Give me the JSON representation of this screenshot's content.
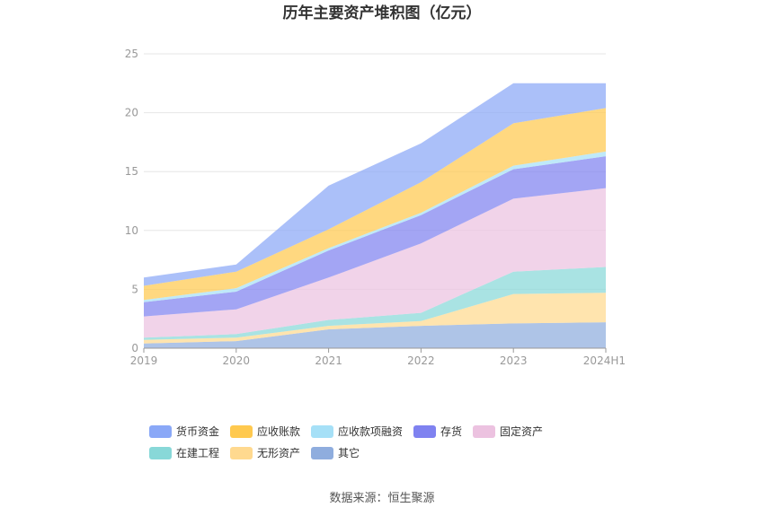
{
  "chart_data": {
    "type": "area",
    "stacked": true,
    "title": "历年主要资产堆积图（亿元）",
    "x": [
      "2019",
      "2020",
      "2021",
      "2022",
      "2023",
      "2024H1"
    ],
    "ylim": [
      0,
      25
    ],
    "yticks": [
      0,
      5,
      10,
      15,
      20,
      25
    ],
    "grid": true,
    "legend_position": "bottom",
    "series": [
      {
        "name": "其它",
        "color": "#8fadde",
        "values": [
          0.4,
          0.6,
          1.6,
          1.9,
          2.1,
          2.2
        ]
      },
      {
        "name": "无形资产",
        "color": "#ffd98f",
        "values": [
          0.3,
          0.3,
          0.3,
          0.4,
          2.5,
          2.5
        ]
      },
      {
        "name": "在建工程",
        "color": "#88d8d8",
        "values": [
          0.2,
          0.3,
          0.5,
          0.7,
          1.9,
          2.2
        ]
      },
      {
        "name": "固定资产",
        "color": "#ecc2e0",
        "values": [
          1.8,
          2.1,
          3.6,
          5.9,
          6.2,
          6.7
        ]
      },
      {
        "name": "存货",
        "color": "#7f82f0",
        "values": [
          1.2,
          1.5,
          2.3,
          2.4,
          2.5,
          2.7
        ]
      },
      {
        "name": "应收款项融资",
        "color": "#a6e0f7",
        "values": [
          0.2,
          0.3,
          0.2,
          0.2,
          0.3,
          0.4
        ]
      },
      {
        "name": "应收账款",
        "color": "#ffc94f",
        "values": [
          1.2,
          1.4,
          1.6,
          2.6,
          3.6,
          3.7
        ]
      },
      {
        "name": "货币资金",
        "color": "#8aa8f7",
        "values": [
          0.7,
          0.6,
          3.7,
          3.3,
          3.4,
          2.1
        ]
      }
    ],
    "legend_order": [
      "货币资金",
      "应收账款",
      "应收款项融资",
      "存货",
      "固定资产",
      "在建工程",
      "无形资产",
      "其它"
    ],
    "source": "数据来源：恒生聚源"
  }
}
